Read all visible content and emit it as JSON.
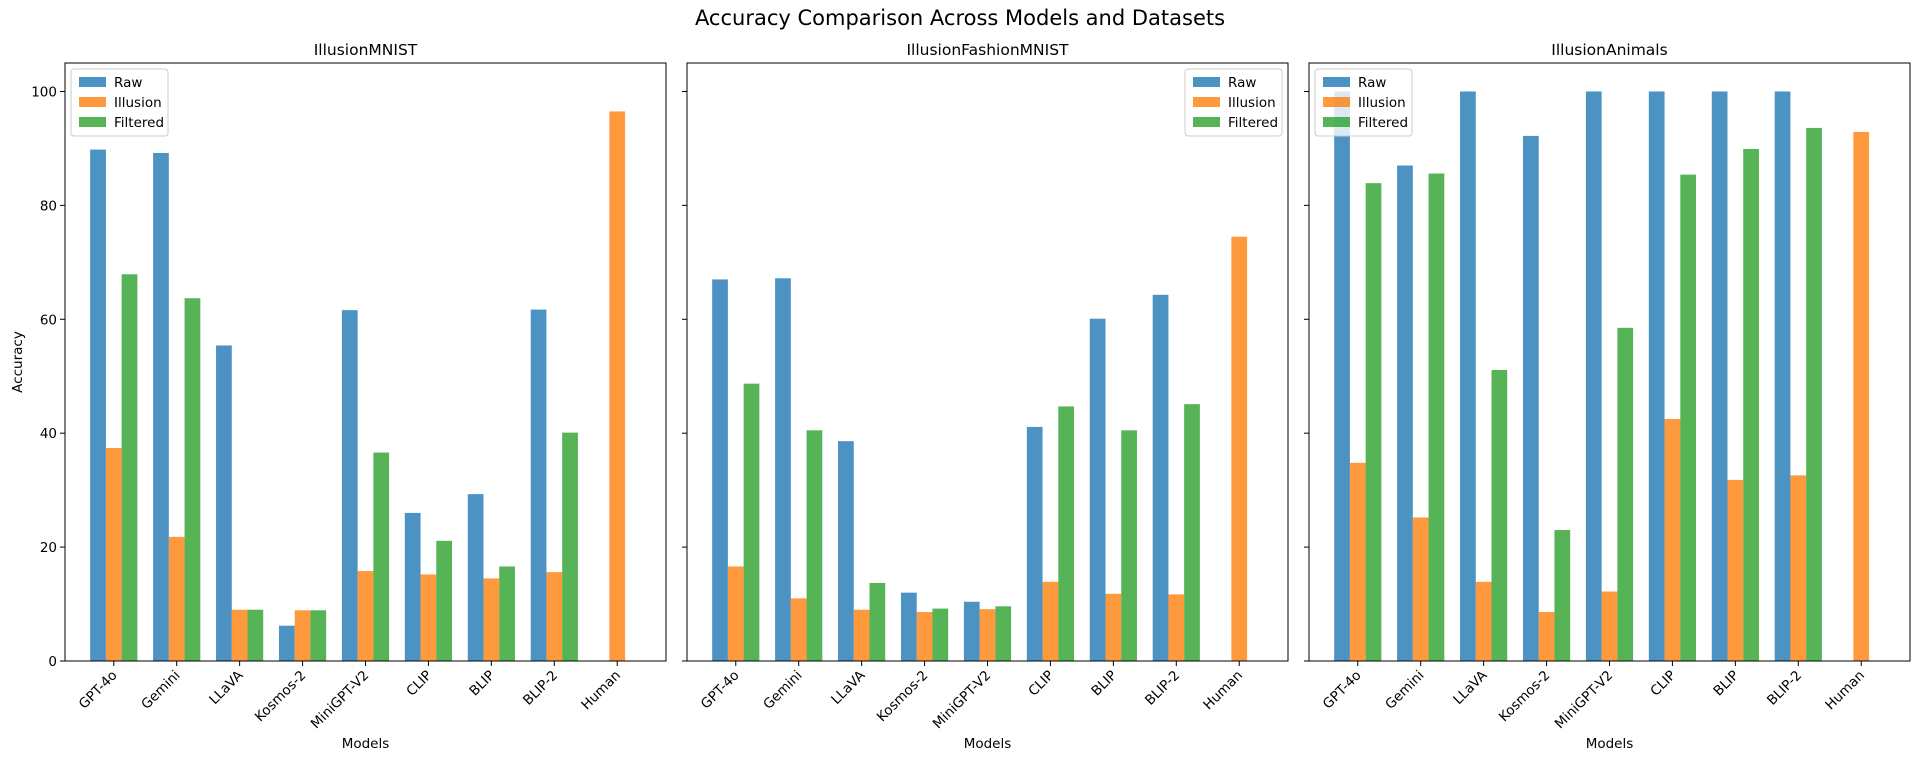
{
  "figure_title": "Accuracy Comparison Across Models and Datasets",
  "colors": {
    "Raw": "#1f77b4",
    "Illusion": "#ff7f0e",
    "Filtered": "#2ca02c"
  },
  "chart_data": [
    {
      "type": "bar",
      "title": "IllusionMNIST",
      "xlabel": "Models",
      "ylabel": "Accuracy",
      "ylim": [
        0,
        105
      ],
      "yticks": [
        "0",
        "20",
        "40",
        "60",
        "80",
        "100"
      ],
      "legend_position": "upper-left",
      "categories": [
        "GPT-4o",
        "Gemini",
        "LLaVA",
        "Kosmos-2",
        "MiniGPT-V2",
        "CLIP",
        "BLIP",
        "BLIP-2",
        "Human"
      ],
      "series": [
        {
          "name": "Raw",
          "values": [
            89.8,
            89.2,
            55.4,
            6.2,
            61.6,
            26.0,
            29.3,
            61.7,
            null
          ]
        },
        {
          "name": "Illusion",
          "values": [
            37.4,
            21.8,
            9.0,
            8.9,
            15.8,
            15.2,
            14.5,
            15.6,
            96.5
          ]
        },
        {
          "name": "Filtered",
          "values": [
            67.9,
            63.7,
            9.0,
            8.9,
            36.6,
            21.1,
            16.6,
            40.1,
            null
          ]
        }
      ]
    },
    {
      "type": "bar",
      "title": "IllusionFashionMNIST",
      "xlabel": "Models",
      "ylabel": "",
      "ylim": [
        0,
        105
      ],
      "yticks": [
        "0",
        "20",
        "40",
        "60",
        "80",
        "100"
      ],
      "legend_position": "upper-right",
      "categories": [
        "GPT-4o",
        "Gemini",
        "LLaVA",
        "Kosmos-2",
        "MiniGPT-V2",
        "CLIP",
        "BLIP",
        "BLIP-2",
        "Human"
      ],
      "series": [
        {
          "name": "Raw",
          "values": [
            67.0,
            67.2,
            38.6,
            12.0,
            10.4,
            41.1,
            60.1,
            64.3,
            null
          ]
        },
        {
          "name": "Illusion",
          "values": [
            16.6,
            11.0,
            9.0,
            8.6,
            9.1,
            13.9,
            11.8,
            11.7,
            74.5
          ]
        },
        {
          "name": "Filtered",
          "values": [
            48.7,
            40.5,
            13.7,
            9.2,
            9.6,
            44.7,
            40.5,
            45.1,
            null
          ]
        }
      ]
    },
    {
      "type": "bar",
      "title": "IllusionAnimals",
      "xlabel": "Models",
      "ylabel": "",
      "ylim": [
        0,
        105
      ],
      "yticks": [
        "0",
        "20",
        "40",
        "60",
        "80",
        "100"
      ],
      "legend_position": "upper-left",
      "categories": [
        "GPT-4o",
        "Gemini",
        "LLaVA",
        "Kosmos-2",
        "MiniGPT-V2",
        "CLIP",
        "BLIP",
        "BLIP-2",
        "Human"
      ],
      "series": [
        {
          "name": "Raw",
          "values": [
            100.0,
            87.0,
            100.0,
            92.2,
            100.0,
            100.0,
            100.0,
            100.0,
            null
          ]
        },
        {
          "name": "Illusion",
          "values": [
            34.8,
            25.2,
            13.9,
            8.6,
            12.2,
            42.5,
            31.8,
            32.6,
            92.9
          ]
        },
        {
          "name": "Filtered",
          "values": [
            83.9,
            85.6,
            51.1,
            23.0,
            58.5,
            85.4,
            89.9,
            93.6,
            null
          ]
        }
      ]
    }
  ]
}
